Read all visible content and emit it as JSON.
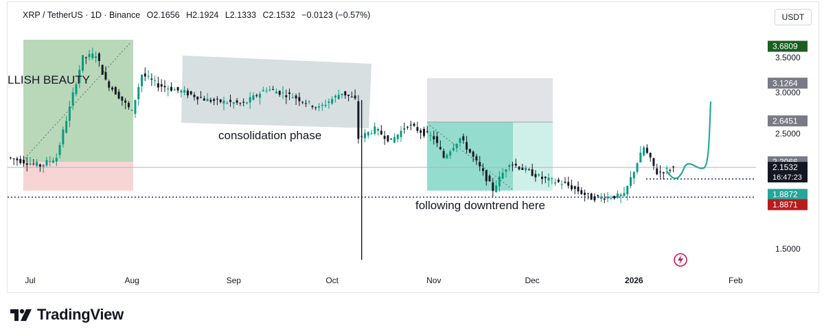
{
  "header": {
    "symbol": "XRP / TetherUS · 1D · Binance",
    "open": "O2.1656",
    "high": "H2.1924",
    "low": "L2.1333",
    "close": "C2.1532",
    "change": "−0.0123 (−0.57%)"
  },
  "currency_label": "USDT",
  "brand": "TradingView",
  "annotations": {
    "left_label": "LLISH BEAUTY",
    "consolidation": "consolidation phase",
    "downtrend": "following downtrend here"
  },
  "price_axis": {
    "ticks": [
      "3.5000",
      "3.0000",
      "2.5000",
      "1.5000"
    ],
    "tags": [
      {
        "text": "3.6809",
        "color": "#1b5e20"
      },
      {
        "text": "3.1264",
        "color": "#787b86"
      },
      {
        "text": "2.6451",
        "color": "#787b86"
      },
      {
        "text": "2.2066",
        "color": "#787b86"
      },
      {
        "text": "2.1532",
        "sub": "16:47:23",
        "color": "#131722"
      },
      {
        "text": "1.8872",
        "color": "#26a69a"
      },
      {
        "text": "1.8871",
        "color": "#b71c1c"
      }
    ]
  },
  "time_axis": [
    "Jul",
    "Aug",
    "Sep",
    "Oct",
    "Nov",
    "Dec",
    "2026",
    "Feb"
  ],
  "colors": {
    "up": "#089981",
    "down": "#131722",
    "projection": "#26a69a"
  },
  "chart_data": {
    "type": "candlestick",
    "title": "XRP / TetherUS · 1D · Binance",
    "xlabel": "",
    "ylabel": "",
    "x_ticks": [
      "Jul",
      "Aug",
      "Sep",
      "Oct",
      "Nov",
      "Dec",
      "2026",
      "Feb"
    ],
    "y_ticks": [
      3.5,
      3.0,
      2.5,
      1.5
    ],
    "ylim": [
      1.35,
      3.75
    ],
    "scale": "log",
    "grid": false,
    "last_price": 2.1532,
    "levels": [
      {
        "value": 3.6809,
        "label": "3.6809"
      },
      {
        "value": 3.1264,
        "label": "3.1264"
      },
      {
        "value": 2.6451,
        "label": "2.6451"
      },
      {
        "value": 2.2066,
        "label": "2.2066"
      },
      {
        "value": 1.8872,
        "label": "1.8872"
      },
      {
        "value": 1.8871,
        "label": "1.8871"
      }
    ],
    "anchors": [
      {
        "date": "Jun 25",
        "price": 2.25
      },
      {
        "date": "Jul 5",
        "price": 2.17
      },
      {
        "date": "Jul 10",
        "price": 2.25
      },
      {
        "date": "Jul 14",
        "price": 2.8
      },
      {
        "date": "Jul 18",
        "price": 3.5
      },
      {
        "date": "Jul 22",
        "price": 3.55
      },
      {
        "date": "Jul 25",
        "price": 3.15
      },
      {
        "date": "Aug 2",
        "price": 2.75
      },
      {
        "date": "Aug 5",
        "price": 3.25
      },
      {
        "date": "Aug 10",
        "price": 3.1
      },
      {
        "date": "Aug 18",
        "price": 3.0
      },
      {
        "date": "Aug 25",
        "price": 2.9
      },
      {
        "date": "Sep 5",
        "price": 2.85
      },
      {
        "date": "Sep 12",
        "price": 3.05
      },
      {
        "date": "Sep 20",
        "price": 2.95
      },
      {
        "date": "Sep 28",
        "price": 2.8
      },
      {
        "date": "Oct 5",
        "price": 3.0
      },
      {
        "date": "Oct 9",
        "price": 2.9
      },
      {
        "date": "Oct 10",
        "price": 2.45
      },
      {
        "date": "Oct 15",
        "price": 2.55
      },
      {
        "date": "Oct 20",
        "price": 2.42
      },
      {
        "date": "Oct 25",
        "price": 2.6
      },
      {
        "date": "Nov 2",
        "price": 2.45
      },
      {
        "date": "Nov 5",
        "price": 2.25
      },
      {
        "date": "Nov 10",
        "price": 2.45
      },
      {
        "date": "Nov 20",
        "price": 1.95
      },
      {
        "date": "Nov 25",
        "price": 2.2
      },
      {
        "date": "Dec 5",
        "price": 2.05
      },
      {
        "date": "Dec 12",
        "price": 2.0
      },
      {
        "date": "Dec 20",
        "price": 1.88
      },
      {
        "date": "Dec 30",
        "price": 1.9
      },
      {
        "date": "Jan 5",
        "price": 2.35
      },
      {
        "date": "Jan 9",
        "price": 2.1
      },
      {
        "date": "Jan 14",
        "price": 2.15
      }
    ]
  }
}
